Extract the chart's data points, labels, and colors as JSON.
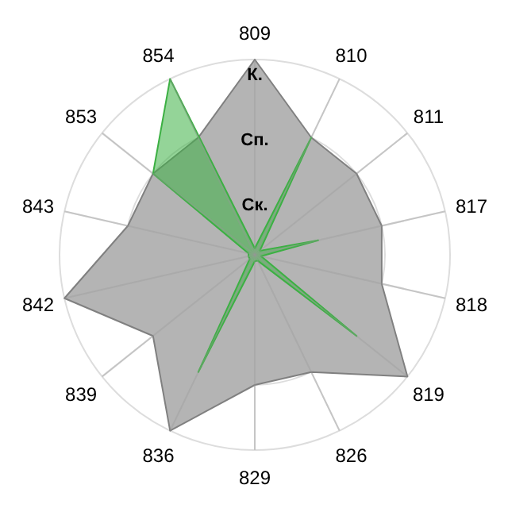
{
  "chart_data": {
    "type": "radar",
    "categories": [
      "809",
      "810",
      "811",
      "817",
      "818",
      "819",
      "826",
      "829",
      "836",
      "839",
      "842",
      "843",
      "853",
      "854"
    ],
    "series": [
      {
        "color": "#b4b4b4",
        "values": [
          3,
          2,
          2,
          2,
          2,
          3,
          2,
          2,
          3,
          2,
          3,
          2,
          2,
          2
        ]
      },
      {
        "color": "#3cb043",
        "values": [
          0.1,
          2,
          0.1,
          1,
          0.1,
          2,
          0.1,
          0.1,
          2,
          0.1,
          0.1,
          0.1,
          2,
          3
        ]
      }
    ],
    "ylim": [
      0,
      3
    ],
    "yticks": [
      {
        "value": 1,
        "label": "Ск."
      },
      {
        "value": 2,
        "label": "Сп."
      },
      {
        "value": 3,
        "label": "К."
      }
    ],
    "grid": true
  }
}
